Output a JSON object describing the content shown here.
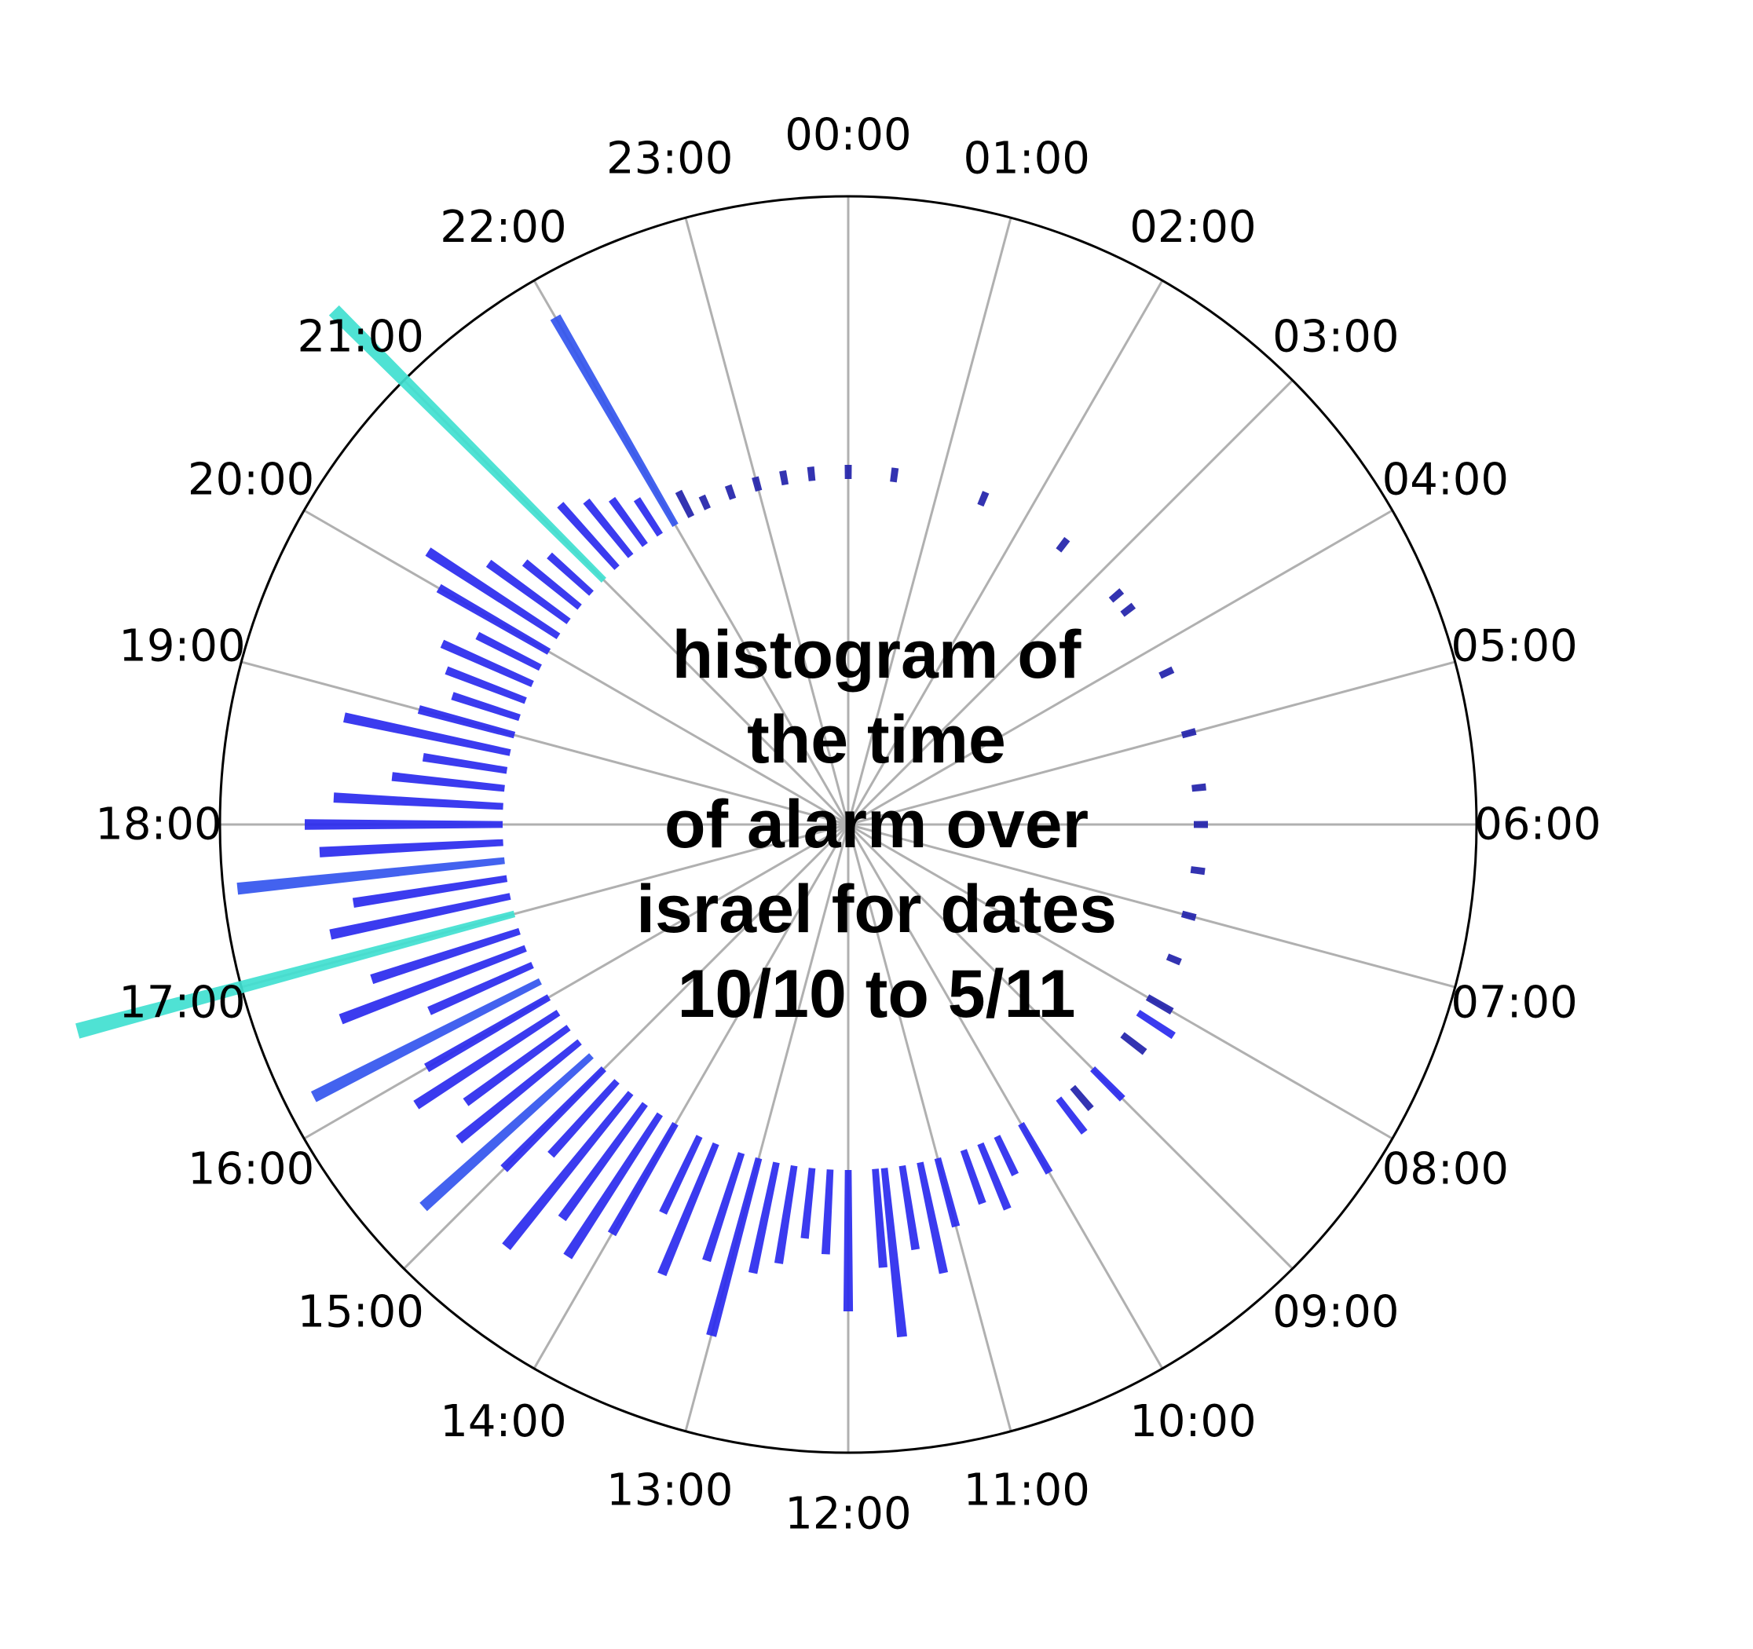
{
  "chart_data": {
    "type": "bar",
    "subtype": "polar-histogram",
    "title_lines": [
      "histogram of",
      "the time",
      "of alarm over",
      "israel for dates",
      "10/10 to 5/11"
    ],
    "direction": "clockwise",
    "zero_location": "top",
    "ylabel": "",
    "xlabel": "",
    "grid": true,
    "angular_ticks": [
      "00:00",
      "01:00",
      "02:00",
      "03:00",
      "04:00",
      "05:00",
      "06:00",
      "07:00",
      "08:00",
      "09:00",
      "10:00",
      "11:00",
      "12:00",
      "13:00",
      "14:00",
      "15:00",
      "16:00",
      "17:00",
      "18:00",
      "19:00",
      "20:00",
      "21:00",
      "22:00",
      "23:00"
    ],
    "colors": {
      "low": "#2222aa",
      "mid": "#2a2aee",
      "high": "#3355ee",
      "peak": "#40e0d0"
    },
    "bins_per_hour": 12,
    "bar_counts": [
      {
        "hour": 0.0,
        "count": 1
      },
      {
        "hour": 0.5,
        "count": 1
      },
      {
        "hour": 1.5,
        "count": 1
      },
      {
        "hour": 2.5,
        "count": 1
      },
      {
        "hour": 3.3,
        "count": 1
      },
      {
        "hour": 3.5,
        "count": 1
      },
      {
        "hour": 4.3,
        "count": 1
      },
      {
        "hour": 5.0,
        "count": 1
      },
      {
        "hour": 5.6,
        "count": 1
      },
      {
        "hour": 6.0,
        "count": 1
      },
      {
        "hour": 6.5,
        "count": 1
      },
      {
        "hour": 7.0,
        "count": 1
      },
      {
        "hour": 7.5,
        "count": 1
      },
      {
        "hour": 8.0,
        "count": 2
      },
      {
        "hour": 8.2,
        "count": 3
      },
      {
        "hour": 8.5,
        "count": 2
      },
      {
        "hour": 9.0,
        "count": 3
      },
      {
        "hour": 9.3,
        "count": 2
      },
      {
        "hour": 9.5,
        "count": 3
      },
      {
        "hour": 10.0,
        "count": 4
      },
      {
        "hour": 10.3,
        "count": 3
      },
      {
        "hour": 10.5,
        "count": 5
      },
      {
        "hour": 10.7,
        "count": 4
      },
      {
        "hour": 11.0,
        "count": 5
      },
      {
        "hour": 11.2,
        "count": 8
      },
      {
        "hour": 11.4,
        "count": 6
      },
      {
        "hour": 11.6,
        "count": 12
      },
      {
        "hour": 11.7,
        "count": 7
      },
      {
        "hour": 12.0,
        "count": 10
      },
      {
        "hour": 12.2,
        "count": 6
      },
      {
        "hour": 12.4,
        "count": 5
      },
      {
        "hour": 12.6,
        "count": 7
      },
      {
        "hour": 12.8,
        "count": 8
      },
      {
        "hour": 13.0,
        "count": 13
      },
      {
        "hour": 13.2,
        "count": 8
      },
      {
        "hour": 13.5,
        "count": 10
      },
      {
        "hour": 13.7,
        "count": 6
      },
      {
        "hour": 14.0,
        "count": 9
      },
      {
        "hour": 14.2,
        "count": 12
      },
      {
        "hour": 14.4,
        "count": 10
      },
      {
        "hour": 14.6,
        "count": 14
      },
      {
        "hour": 14.8,
        "count": 7
      },
      {
        "hour": 15.0,
        "count": 10
      },
      {
        "hour": 15.2,
        "count": 16
      },
      {
        "hour": 15.4,
        "count": 11
      },
      {
        "hour": 15.6,
        "count": 9
      },
      {
        "hour": 15.8,
        "count": 12
      },
      {
        "hour": 16.0,
        "count": 10
      },
      {
        "hour": 16.2,
        "count": 18
      },
      {
        "hour": 16.4,
        "count": 8
      },
      {
        "hour": 16.6,
        "count": 14
      },
      {
        "hour": 16.8,
        "count": 11
      },
      {
        "hour": 17.0,
        "count": 32
      },
      {
        "hour": 17.2,
        "count": 13
      },
      {
        "hour": 17.4,
        "count": 11
      },
      {
        "hour": 17.6,
        "count": 19
      },
      {
        "hour": 17.8,
        "count": 13
      },
      {
        "hour": 18.0,
        "count": 14
      },
      {
        "hour": 18.2,
        "count": 12
      },
      {
        "hour": 18.4,
        "count": 8
      },
      {
        "hour": 18.6,
        "count": 6
      },
      {
        "hour": 18.8,
        "count": 12
      },
      {
        "hour": 19.0,
        "count": 7
      },
      {
        "hour": 19.2,
        "count": 5
      },
      {
        "hour": 19.4,
        "count": 6
      },
      {
        "hour": 19.6,
        "count": 7
      },
      {
        "hour": 19.8,
        "count": 5
      },
      {
        "hour": 20.0,
        "count": 9
      },
      {
        "hour": 20.2,
        "count": 11
      },
      {
        "hour": 20.4,
        "count": 7
      },
      {
        "hour": 20.6,
        "count": 5
      },
      {
        "hour": 20.8,
        "count": 4
      },
      {
        "hour": 21.0,
        "count": 27
      },
      {
        "hour": 21.2,
        "count": 6
      },
      {
        "hour": 21.4,
        "count": 5
      },
      {
        "hour": 21.6,
        "count": 4
      },
      {
        "hour": 21.8,
        "count": 3
      },
      {
        "hour": 22.0,
        "count": 17
      },
      {
        "hour": 22.2,
        "count": 2
      },
      {
        "hour": 22.4,
        "count": 1
      },
      {
        "hour": 22.7,
        "count": 1
      },
      {
        "hour": 23.0,
        "count": 1
      },
      {
        "hour": 23.3,
        "count": 1
      },
      {
        "hour": 23.6,
        "count": 1
      }
    ]
  }
}
